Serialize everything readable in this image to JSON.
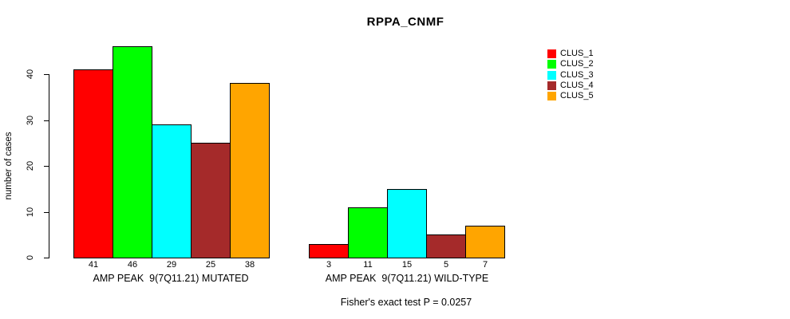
{
  "chart_data": {
    "type": "bar",
    "title": "RPPA_CNMF",
    "ylabel": "number of cases",
    "xlabel": "",
    "annotation": "Fisher's exact test P = 0.0257",
    "categories": [
      "AMP PEAK  9(7Q11.21) MUTATED",
      "AMP PEAK  9(7Q11.21) WILD-TYPE"
    ],
    "series": [
      {
        "name": "CLUS_1",
        "color": "#FF0000",
        "values": [
          41,
          3
        ]
      },
      {
        "name": "CLUS_2",
        "color": "#00FF00",
        "values": [
          46,
          11
        ]
      },
      {
        "name": "CLUS_3",
        "color": "#00FFFF",
        "values": [
          29,
          15
        ]
      },
      {
        "name": "CLUS_4",
        "color": "#A52A2A",
        "values": [
          25,
          5
        ]
      },
      {
        "name": "CLUS_5",
        "color": "#FFA500",
        "values": [
          38,
          7
        ]
      }
    ],
    "bar_value_labels": [
      [
        41,
        46,
        29,
        25,
        38
      ],
      [
        3,
        11,
        15,
        5,
        7
      ]
    ],
    "ylim": [
      0,
      46
    ],
    "yticks": [
      0,
      10,
      20,
      30,
      40
    ],
    "grid": false,
    "legend_position": "right",
    "legend_entries": [
      "CLUS_1",
      "CLUS_2",
      "CLUS_3",
      "CLUS_4",
      "CLUS_5"
    ],
    "axis_color": "#000000",
    "bar_border_color": "#000000"
  }
}
